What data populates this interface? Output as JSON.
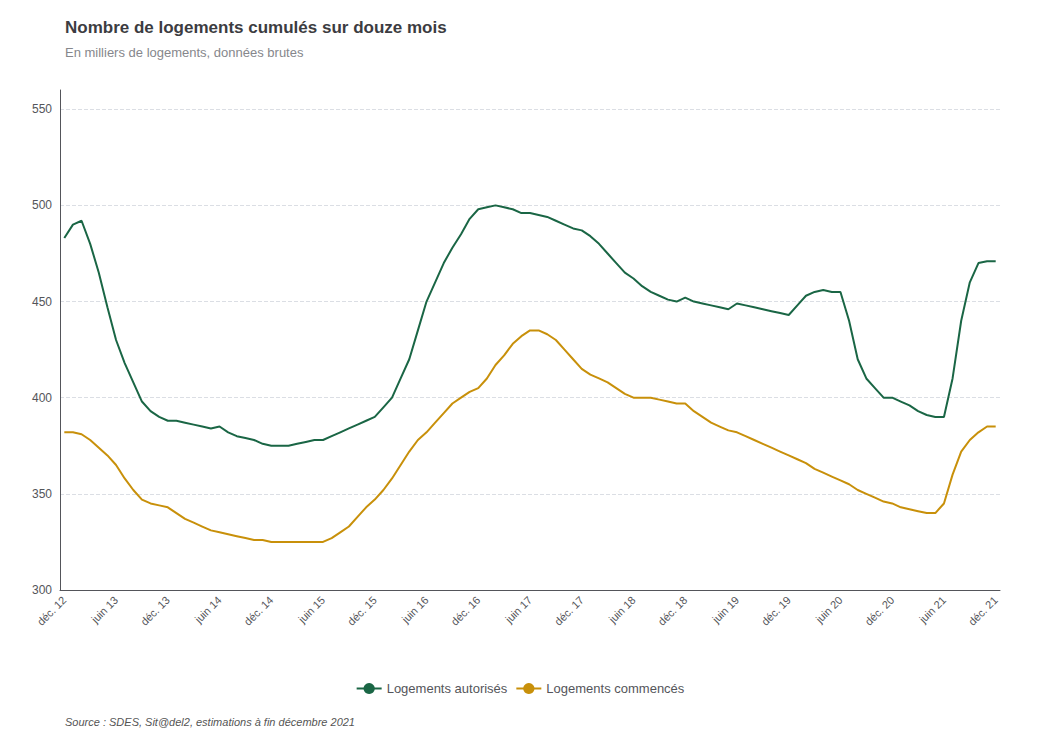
{
  "chart_data": {
    "type": "line",
    "title": "Nombre de logements cumulés sur douze mois",
    "subtitle": "En milliers de logements, données brutes",
    "source": "Source : SDES, Sit@del2, estimations à fin décembre 2021",
    "categories": [
      "déc. 12",
      null,
      null,
      null,
      null,
      null,
      "juin 13",
      null,
      null,
      null,
      null,
      null,
      "déc. 13",
      null,
      null,
      null,
      null,
      null,
      "juin 14",
      null,
      null,
      null,
      null,
      null,
      "déc. 14",
      null,
      null,
      null,
      null,
      null,
      "juin 15",
      null,
      null,
      null,
      null,
      null,
      "déc. 15",
      null,
      null,
      null,
      null,
      null,
      "juin 16",
      null,
      null,
      null,
      null,
      null,
      "déc. 16",
      null,
      null,
      null,
      null,
      null,
      "juin 17",
      null,
      null,
      null,
      null,
      null,
      "déc. 17",
      null,
      null,
      null,
      null,
      null,
      "juin 18",
      null,
      null,
      null,
      null,
      null,
      "déc. 18",
      null,
      null,
      null,
      null,
      null,
      "juin 19",
      null,
      null,
      null,
      null,
      null,
      "déc. 19",
      null,
      null,
      null,
      null,
      null,
      "juin 20",
      null,
      null,
      null,
      null,
      null,
      "déc. 20",
      null,
      null,
      null,
      null,
      null,
      "juin 21",
      null,
      null,
      null,
      null,
      null,
      "déc. 21"
    ],
    "series": [
      {
        "name": "Logements autorisés",
        "color": "#1a6645",
        "values": [
          483,
          490,
          492,
          480,
          465,
          447,
          430,
          418,
          408,
          398,
          393,
          390,
          388,
          388,
          387,
          386,
          385,
          384,
          385,
          382,
          380,
          379,
          378,
          376,
          375,
          375,
          375,
          376,
          377,
          378,
          378,
          380,
          382,
          384,
          386,
          388,
          390,
          395,
          400,
          410,
          420,
          435,
          450,
          460,
          470,
          478,
          485,
          493,
          498,
          499,
          500,
          499,
          498,
          496,
          496,
          495,
          494,
          492,
          490,
          488,
          487,
          484,
          480,
          475,
          470,
          465,
          462,
          458,
          455,
          453,
          451,
          450,
          452,
          450,
          449,
          448,
          447,
          446,
          449,
          448,
          447,
          446,
          445,
          444,
          443,
          448,
          453,
          455,
          456,
          455,
          455,
          440,
          420,
          410,
          405,
          400,
          400,
          398,
          396,
          393,
          391,
          390,
          390,
          410,
          440,
          460,
          470,
          471,
          471
        ]
      },
      {
        "name": "Logements commencés",
        "color": "#c8900a",
        "values": [
          382,
          382,
          381,
          378,
          374,
          370,
          365,
          358,
          352,
          347,
          345,
          344,
          343,
          340,
          337,
          335,
          333,
          331,
          330,
          329,
          328,
          327,
          326,
          326,
          325,
          325,
          325,
          325,
          325,
          325,
          325,
          327,
          330,
          333,
          338,
          343,
          347,
          352,
          358,
          365,
          372,
          378,
          382,
          387,
          392,
          397,
          400,
          403,
          405,
          410,
          417,
          422,
          428,
          432,
          435,
          435,
          433,
          430,
          425,
          420,
          415,
          412,
          410,
          408,
          405,
          402,
          400,
          400,
          400,
          399,
          398,
          397,
          397,
          393,
          390,
          387,
          385,
          383,
          382,
          380,
          378,
          376,
          374,
          372,
          370,
          368,
          366,
          363,
          361,
          359,
          357,
          355,
          352,
          350,
          348,
          346,
          345,
          343,
          342,
          341,
          340,
          340,
          345,
          360,
          372,
          378,
          382,
          385,
          385
        ]
      }
    ],
    "ylim": [
      300,
      560
    ],
    "yticks": [
      300,
      350,
      400,
      450,
      500,
      550
    ],
    "grid": true,
    "legend": "bottom"
  }
}
